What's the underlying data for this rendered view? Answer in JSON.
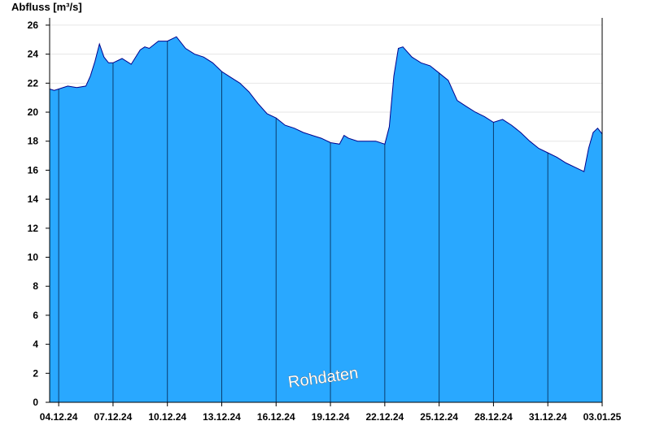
{
  "chart_data": {
    "type": "area",
    "ylabel": "Abfluss [m³/s]",
    "xlabel": "",
    "title": "",
    "watermark": "Rohdaten",
    "ylim": [
      0,
      26.5
    ],
    "yticks": [
      0,
      2,
      4,
      6,
      8,
      10,
      12,
      14,
      16,
      18,
      20,
      22,
      24,
      26
    ],
    "xrange": [
      "03.12.24 12:00",
      "03.01.25 00:00"
    ],
    "xticks": [
      "04.12.24",
      "07.12.24",
      "10.12.24",
      "13.12.24",
      "16.12.24",
      "19.12.24",
      "22.12.24",
      "25.12.24",
      "28.12.24",
      "31.12.24",
      "03.01.25"
    ],
    "grid": true,
    "fill_color": "#29A8FF",
    "line_color": "#00008B",
    "series": [
      {
        "x": [
          "03.12.24 12:00",
          "03.12.24 18:00",
          "04.12.24 00:00",
          "04.12.24 12:00",
          "05.12.24 00:00",
          "05.12.24 12:00",
          "05.12.24 18:00",
          "06.12.24 00:00",
          "06.12.24 06:00",
          "06.12.24 12:00",
          "06.12.24 18:00",
          "07.12.24 00:00",
          "07.12.24 12:00",
          "08.12.24 00:00",
          "08.12.24 12:00",
          "08.12.24 18:00",
          "09.12.24 00:00",
          "09.12.24 12:00",
          "10.12.24 00:00",
          "10.12.24 12:00",
          "11.12.24 00:00",
          "11.12.24 12:00",
          "12.12.24 00:00",
          "12.12.24 12:00",
          "13.12.24 00:00",
          "13.12.24 12:00",
          "14.12.24 00:00",
          "14.12.24 12:00",
          "15.12.24 00:00",
          "15.12.24 12:00",
          "16.12.24 00:00",
          "16.12.24 12:00",
          "17.12.24 00:00",
          "17.12.24 12:00",
          "18.12.24 00:00",
          "18.12.24 12:00",
          "19.12.24 00:00",
          "19.12.24 12:00",
          "19.12.24 18:00",
          "20.12.24 00:00",
          "20.12.24 12:00",
          "21.12.24 00:00",
          "21.12.24 12:00",
          "22.12.24 00:00",
          "22.12.24 06:00",
          "22.12.24 12:00",
          "22.12.24 18:00",
          "23.12.24 00:00",
          "23.12.24 12:00",
          "24.12.24 00:00",
          "24.12.24 12:00",
          "25.12.24 00:00",
          "25.12.24 12:00",
          "26.12.24 00:00",
          "26.12.24 12:00",
          "27.12.24 00:00",
          "27.12.24 12:00",
          "28.12.24 00:00",
          "28.12.24 12:00",
          "29.12.24 00:00",
          "29.12.24 12:00",
          "30.12.24 00:00",
          "30.12.24 12:00",
          "31.12.24 00:00",
          "31.12.24 12:00",
          "01.01.25 00:00",
          "01.01.25 12:00",
          "02.01.25 00:00",
          "02.01.25 06:00",
          "02.01.25 12:00",
          "02.01.25 18:00",
          "03.01.25 00:00"
        ],
        "y": [
          21.6,
          21.5,
          21.6,
          21.8,
          21.7,
          21.8,
          22.5,
          23.5,
          24.7,
          23.8,
          23.4,
          23.4,
          23.7,
          23.3,
          24.3,
          24.5,
          24.4,
          24.9,
          24.9,
          25.2,
          24.4,
          24.0,
          23.8,
          23.4,
          22.8,
          22.4,
          22.0,
          21.4,
          20.6,
          19.9,
          19.6,
          19.1,
          18.9,
          18.6,
          18.4,
          18.2,
          17.9,
          17.8,
          18.4,
          18.2,
          18.0,
          18.0,
          18.0,
          17.8,
          19.0,
          22.5,
          24.4,
          24.5,
          23.8,
          23.4,
          23.2,
          22.7,
          22.2,
          20.8,
          20.4,
          20.0,
          19.7,
          19.3,
          19.5,
          19.1,
          18.6,
          18.0,
          17.5,
          17.2,
          16.9,
          16.5,
          16.2,
          15.9,
          17.5,
          18.6,
          18.9,
          18.5
        ]
      }
    ]
  }
}
